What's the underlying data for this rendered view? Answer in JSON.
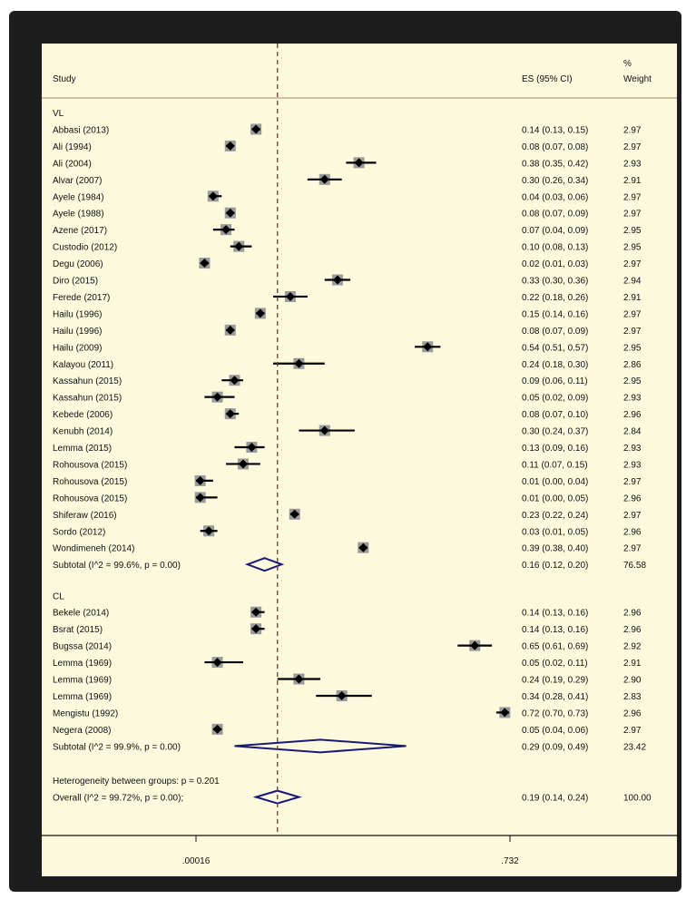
{
  "header": {
    "study_label": "Study",
    "es_label": "ES (95% CI)",
    "weight_label_1": "%",
    "weight_label_2": "Weight"
  },
  "chart_data": {
    "type": "forest",
    "x_ticks": [
      {
        "label": ".00016",
        "value": 0.00016
      },
      {
        "label": ".732",
        "value": 0.732
      }
    ],
    "overall_effect": 0.19,
    "groups": [
      {
        "name": "VL",
        "studies": [
          {
            "study": "Abbasi (2013)",
            "es": 0.14,
            "lo": 0.13,
            "hi": 0.15,
            "ci_text": "0.14 (0.13, 0.15)",
            "weight": "2.97"
          },
          {
            "study": "Ali (1994)",
            "es": 0.08,
            "lo": 0.07,
            "hi": 0.08,
            "ci_text": "0.08 (0.07, 0.08)",
            "weight": "2.97"
          },
          {
            "study": "Ali (2004)",
            "es": 0.38,
            "lo": 0.35,
            "hi": 0.42,
            "ci_text": "0.38 (0.35, 0.42)",
            "weight": "2.93"
          },
          {
            "study": "Alvar (2007)",
            "es": 0.3,
            "lo": 0.26,
            "hi": 0.34,
            "ci_text": "0.30 (0.26, 0.34)",
            "weight": "2.91"
          },
          {
            "study": "Ayele (1984)",
            "es": 0.04,
            "lo": 0.03,
            "hi": 0.06,
            "ci_text": "0.04 (0.03, 0.06)",
            "weight": "2.97"
          },
          {
            "study": "Ayele (1988)",
            "es": 0.08,
            "lo": 0.07,
            "hi": 0.09,
            "ci_text": "0.08 (0.07, 0.09)",
            "weight": "2.97"
          },
          {
            "study": "Azene (2017)",
            "es": 0.07,
            "lo": 0.04,
            "hi": 0.09,
            "ci_text": "0.07 (0.04, 0.09)",
            "weight": "2.95"
          },
          {
            "study": "Custodio (2012)",
            "es": 0.1,
            "lo": 0.08,
            "hi": 0.13,
            "ci_text": "0.10 (0.08, 0.13)",
            "weight": "2.95"
          },
          {
            "study": "Degu (2006)",
            "es": 0.02,
            "lo": 0.01,
            "hi": 0.03,
            "ci_text": "0.02 (0.01, 0.03)",
            "weight": "2.97"
          },
          {
            "study": "Diro (2015)",
            "es": 0.33,
            "lo": 0.3,
            "hi": 0.36,
            "ci_text": "0.33 (0.30, 0.36)",
            "weight": "2.94"
          },
          {
            "study": "Ferede (2017)",
            "es": 0.22,
            "lo": 0.18,
            "hi": 0.26,
            "ci_text": "0.22 (0.18, 0.26)",
            "weight": "2.91"
          },
          {
            "study": "Hailu (1996)",
            "es": 0.15,
            "lo": 0.14,
            "hi": 0.16,
            "ci_text": "0.15 (0.14, 0.16)",
            "weight": "2.97"
          },
          {
            "study": "Hailu (1996)",
            "es": 0.08,
            "lo": 0.07,
            "hi": 0.09,
            "ci_text": "0.08 (0.07, 0.09)",
            "weight": "2.97"
          },
          {
            "study": "Hailu (2009)",
            "es": 0.54,
            "lo": 0.51,
            "hi": 0.57,
            "ci_text": "0.54 (0.51, 0.57)",
            "weight": "2.95"
          },
          {
            "study": "Kalayou (2011)",
            "es": 0.24,
            "lo": 0.18,
            "hi": 0.3,
            "ci_text": "0.24 (0.18, 0.30)",
            "weight": "2.86"
          },
          {
            "study": "Kassahun (2015)",
            "es": 0.09,
            "lo": 0.06,
            "hi": 0.11,
            "ci_text": "0.09 (0.06, 0.11)",
            "weight": "2.95"
          },
          {
            "study": "Kassahun (2015)",
            "es": 0.05,
            "lo": 0.02,
            "hi": 0.09,
            "ci_text": "0.05 (0.02, 0.09)",
            "weight": "2.93"
          },
          {
            "study": "Kebede (2006)",
            "es": 0.08,
            "lo": 0.07,
            "hi": 0.1,
            "ci_text": "0.08 (0.07, 0.10)",
            "weight": "2.96"
          },
          {
            "study": "Kenubh (2014)",
            "es": 0.3,
            "lo": 0.24,
            "hi": 0.37,
            "ci_text": "0.30 (0.24, 0.37)",
            "weight": "2.84"
          },
          {
            "study": "Lemma (2015)",
            "es": 0.13,
            "lo": 0.09,
            "hi": 0.16,
            "ci_text": "0.13 (0.09, 0.16)",
            "weight": "2.93"
          },
          {
            "study": "Rohousova (2015)",
            "es": 0.11,
            "lo": 0.07,
            "hi": 0.15,
            "ci_text": "0.11 (0.07, 0.15)",
            "weight": "2.93"
          },
          {
            "study": "Rohousova (2015)",
            "es": 0.01,
            "lo": 0.0,
            "hi": 0.04,
            "ci_text": "0.01 (0.00, 0.04)",
            "weight": "2.97"
          },
          {
            "study": "Rohousova (2015)",
            "es": 0.01,
            "lo": 0.0,
            "hi": 0.05,
            "ci_text": "0.01 (0.00, 0.05)",
            "weight": "2.96"
          },
          {
            "study": "Shiferaw (2016)",
            "es": 0.23,
            "lo": 0.22,
            "hi": 0.24,
            "ci_text": "0.23 (0.22, 0.24)",
            "weight": "2.97"
          },
          {
            "study": "Sordo (2012)",
            "es": 0.03,
            "lo": 0.01,
            "hi": 0.05,
            "ci_text": "0.03 (0.01, 0.05)",
            "weight": "2.96"
          },
          {
            "study": "Wondimeneh (2014)",
            "es": 0.39,
            "lo": 0.38,
            "hi": 0.4,
            "ci_text": "0.39 (0.38, 0.40)",
            "weight": "2.97"
          }
        ],
        "subtotal": {
          "label": "Subtotal  (I^2 = 99.6%, p = 0.00)",
          "es": 0.16,
          "lo": 0.12,
          "hi": 0.2,
          "ci_text": "0.16 (0.12, 0.20)",
          "weight": "76.58"
        }
      },
      {
        "name": "CL",
        "studies": [
          {
            "study": "Bekele (2014)",
            "es": 0.14,
            "lo": 0.13,
            "hi": 0.16,
            "ci_text": "0.14 (0.13, 0.16)",
            "weight": "2.96"
          },
          {
            "study": "Bsrat (2015)",
            "es": 0.14,
            "lo": 0.13,
            "hi": 0.16,
            "ci_text": "0.14 (0.13, 0.16)",
            "weight": "2.96"
          },
          {
            "study": "Bugssa (2014)",
            "es": 0.65,
            "lo": 0.61,
            "hi": 0.69,
            "ci_text": "0.65 (0.61, 0.69)",
            "weight": "2.92"
          },
          {
            "study": "Lemma (1969)",
            "es": 0.05,
            "lo": 0.02,
            "hi": 0.11,
            "ci_text": "0.05 (0.02, 0.11)",
            "weight": "2.91"
          },
          {
            "study": "Lemma (1969)",
            "es": 0.24,
            "lo": 0.19,
            "hi": 0.29,
            "ci_text": "0.24 (0.19, 0.29)",
            "weight": "2.90"
          },
          {
            "study": "Lemma (1969)",
            "es": 0.34,
            "lo": 0.28,
            "hi": 0.41,
            "ci_text": "0.34 (0.28, 0.41)",
            "weight": "2.83"
          },
          {
            "study": "Mengistu (1992)",
            "es": 0.72,
            "lo": 0.7,
            "hi": 0.73,
            "ci_text": "0.72 (0.70, 0.73)",
            "weight": "2.96"
          },
          {
            "study": "Negera (2008)",
            "es": 0.05,
            "lo": 0.04,
            "hi": 0.06,
            "ci_text": "0.05 (0.04, 0.06)",
            "weight": "2.97"
          }
        ],
        "subtotal": {
          "label": "Subtotal  (I^2 = 99.9%, p = 0.00)",
          "es": 0.29,
          "lo": 0.09,
          "hi": 0.49,
          "ci_text": "0.29 (0.09, 0.49)",
          "weight": "23.42"
        }
      }
    ],
    "heterogeneity": "Heterogeneity between groups: p = 0.201",
    "overall": {
      "label": "Overall  (I^2 = 99.72%, p = 0.00);",
      "es": 0.19,
      "lo": 0.14,
      "hi": 0.24,
      "ci_text": "0.19 (0.14, 0.24)",
      "weight": "100.00"
    },
    "colors": {
      "background": "#fcf9dd",
      "diamond": "#1a1a7a",
      "reference_line": "#8b2d2d",
      "marker": "#000000",
      "weight_box": "#9a9a9a"
    }
  }
}
